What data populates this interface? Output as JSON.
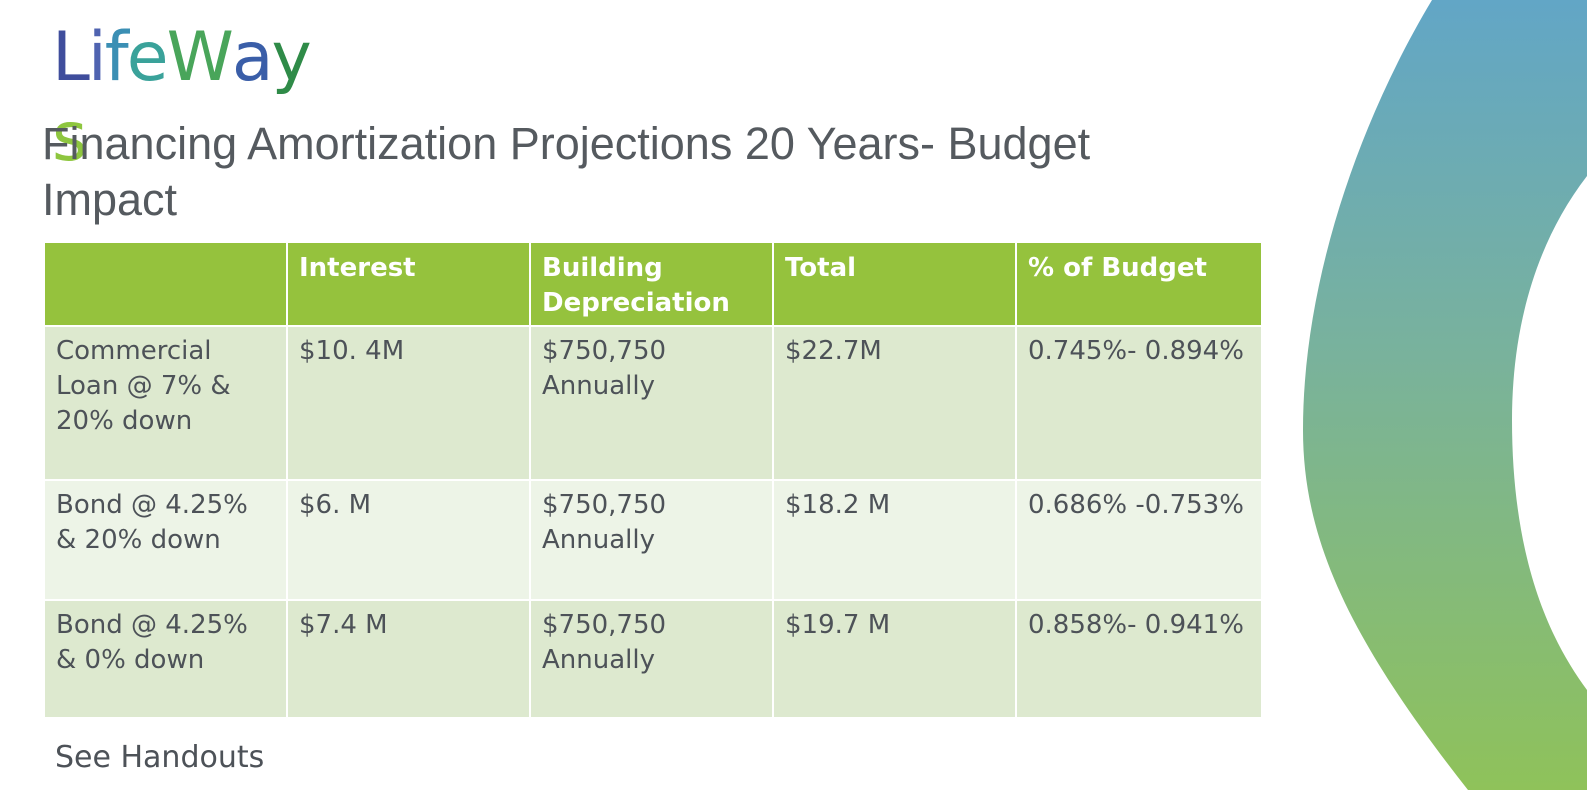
{
  "logo": {
    "text": "LifeWays",
    "letters": [
      {
        "ch": "L",
        "color": "#3f4d9c"
      },
      {
        "ch": "i",
        "color": "#4f63b0"
      },
      {
        "ch": "f",
        "color": "#3b8fb4"
      },
      {
        "ch": "e",
        "color": "#3aa29a"
      },
      {
        "ch": "W",
        "color": "#49a55a"
      },
      {
        "ch": "a",
        "color": "#3a5ea8"
      },
      {
        "ch": "y",
        "color": "#2f8b48"
      },
      {
        "ch": "s",
        "color": "#8ec63f"
      }
    ]
  },
  "title": "Financing Amortization Projections 20 Years-  Budget Impact",
  "table": {
    "headers": [
      "",
      "Interest",
      "Building Depreciation",
      "Total",
      "% of Budget"
    ],
    "rows": [
      [
        "Commercial Loan @ 7% & 20% down",
        "$10. 4M",
        "$750,750 Annually",
        "$22.7M",
        "0.745%- 0.894%"
      ],
      [
        "Bond @ 4.25% & 20% down",
        "$6. M",
        "$750,750 Annually",
        "$18.2 M",
        "0.686% -0.753%"
      ],
      [
        "Bond @ 4.25% & 0% down",
        "$7.4 M",
        "$750,750 Annually",
        "$19.7 M",
        "0.858%- 0.941%"
      ]
    ]
  },
  "footer_note": "See Handouts",
  "colors": {
    "header_green": "#95c23d",
    "row_dark": "#dde9cf",
    "row_light": "#edf4e7",
    "arc_top": "#62a6c6",
    "arc_bottom": "#8fc25a"
  }
}
